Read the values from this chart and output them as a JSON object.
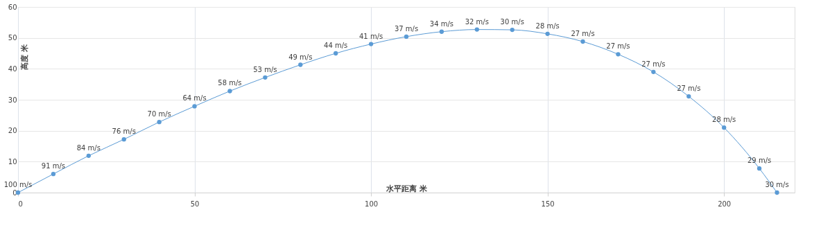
{
  "chart_data": {
    "type": "line",
    "xlabel": "水平距离 米",
    "ylabel": "高度 米",
    "x": [
      0,
      10,
      20,
      30,
      40,
      50,
      60,
      70,
      80,
      90,
      100,
      110,
      120,
      130,
      140,
      150,
      160,
      170,
      180,
      190,
      200,
      210,
      215
    ],
    "series": [
      {
        "color": "#5b9bd5",
        "values": [
          0,
          6.0,
          11.9,
          17.2,
          22.8,
          27.9,
          32.8,
          37.2,
          41.3,
          45.0,
          48.0,
          50.4,
          52.0,
          52.7,
          52.6,
          51.3,
          48.8,
          44.7,
          39.0,
          31.1,
          21.0,
          7.8,
          0
        ]
      }
    ],
    "annotations": [
      {
        "text": "100 m/s",
        "x": 0,
        "y": 0
      },
      {
        "text": "91 m/s",
        "x": 10,
        "y": 6.0
      },
      {
        "text": "84 m/s",
        "x": 20,
        "y": 11.9
      },
      {
        "text": "76 m/s",
        "x": 30,
        "y": 17.2
      },
      {
        "text": "70 m/s",
        "x": 40,
        "y": 22.8
      },
      {
        "text": "64 m/s",
        "x": 50,
        "y": 27.9
      },
      {
        "text": "58 m/s",
        "x": 60,
        "y": 32.8
      },
      {
        "text": "53 m/s",
        "x": 70,
        "y": 37.2
      },
      {
        "text": "49 m/s",
        "x": 80,
        "y": 41.3
      },
      {
        "text": "44 m/s",
        "x": 90,
        "y": 45.0
      },
      {
        "text": "41 m/s",
        "x": 100,
        "y": 48.0
      },
      {
        "text": "37 m/s",
        "x": 110,
        "y": 50.4
      },
      {
        "text": "34 m/s",
        "x": 120,
        "y": 52.0
      },
      {
        "text": "32 m/s",
        "x": 130,
        "y": 52.7
      },
      {
        "text": "30 m/s",
        "x": 140,
        "y": 52.6
      },
      {
        "text": "28 m/s",
        "x": 150,
        "y": 51.3
      },
      {
        "text": "27 m/s",
        "x": 160,
        "y": 48.8
      },
      {
        "text": "27 m/s",
        "x": 170,
        "y": 44.7
      },
      {
        "text": "27 m/s",
        "x": 180,
        "y": 39.0
      },
      {
        "text": "27 m/s",
        "x": 190,
        "y": 31.1
      },
      {
        "text": "28 m/s",
        "x": 200,
        "y": 21.0
      },
      {
        "text": "29 m/s",
        "x": 210,
        "y": 7.8
      },
      {
        "text": "30 m/s",
        "x": 215,
        "y": 0
      }
    ],
    "xlim": [
      0,
      220
    ],
    "xticks": [
      0,
      50,
      100,
      150,
      200
    ],
    "ylim": [
      0,
      60
    ],
    "yticks": [
      0,
      10,
      20,
      30,
      40,
      50,
      60
    ],
    "grid": true,
    "marker": "circle",
    "line_style": "solid"
  }
}
